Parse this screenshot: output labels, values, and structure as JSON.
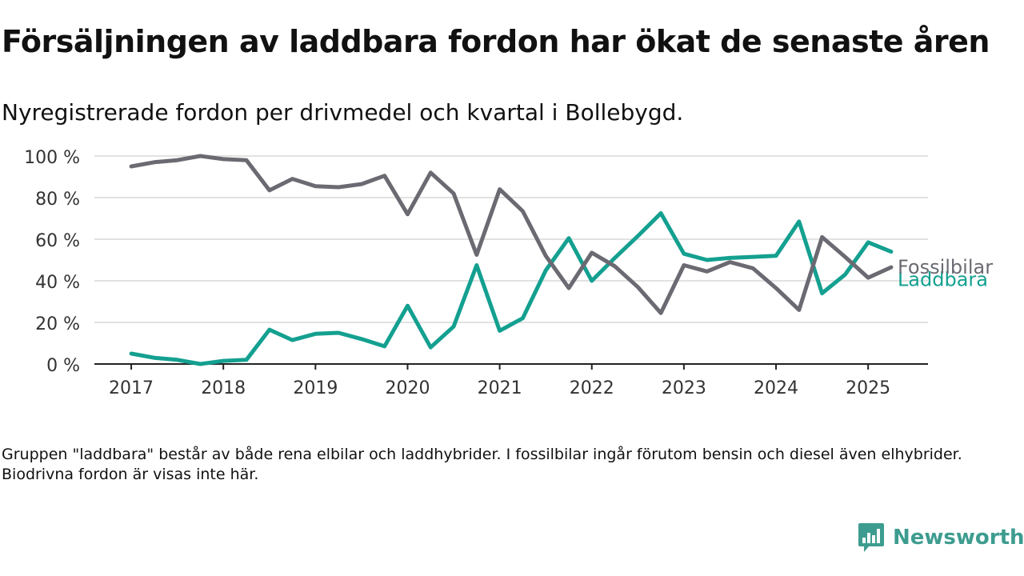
{
  "title": "Försäljningen av laddbara fordon har ökat de senaste åren",
  "subtitle": "Nyregistrerade fordon per drivmedel och kvartal i Bollebygd.",
  "footnote": "Gruppen \"laddbara\" består av både rena elbilar och laddhybrider. I fossilbilar ingår förutom bensin och diesel även elhybrider. Biodrivna fordon är visas inte här.",
  "brand": {
    "name": "Newsworthy",
    "icon": "newsworthy-logo-icon",
    "color": "#3d9c8f"
  },
  "chart_data": {
    "type": "line",
    "x": [
      2017.0,
      2017.25,
      2017.5,
      2017.75,
      2018.0,
      2018.25,
      2018.5,
      2018.75,
      2019.0,
      2019.25,
      2019.5,
      2019.75,
      2020.0,
      2020.25,
      2020.5,
      2020.75,
      2021.0,
      2021.25,
      2021.5,
      2021.75,
      2022.0,
      2022.25,
      2022.5,
      2022.75,
      2023.0,
      2023.25,
      2023.5,
      2023.75,
      2024.0,
      2024.25,
      2024.5,
      2024.75,
      2025.0,
      2025.25
    ],
    "xticks": [
      {
        "value": 2017,
        "label": "2017"
      },
      {
        "value": 2018,
        "label": "2018"
      },
      {
        "value": 2019,
        "label": "2019"
      },
      {
        "value": 2020,
        "label": "2020"
      },
      {
        "value": 2021,
        "label": "2021"
      },
      {
        "value": 2022,
        "label": "2022"
      },
      {
        "value": 2023,
        "label": "2023"
      },
      {
        "value": 2024,
        "label": "2024"
      },
      {
        "value": 2025,
        "label": "2025"
      }
    ],
    "yticks": [
      {
        "value": 0,
        "label": "0 %"
      },
      {
        "value": 20,
        "label": "20 %"
      },
      {
        "value": 40,
        "label": "40 %"
      },
      {
        "value": 60,
        "label": "60 %"
      },
      {
        "value": 80,
        "label": "80 %"
      },
      {
        "value": 100,
        "label": "100 %"
      }
    ],
    "xlim": [
      2016.6,
      2025.65
    ],
    "ylim": [
      0,
      100
    ],
    "grid": true,
    "xlabel": "",
    "ylabel": "",
    "series": [
      {
        "name": "Fossilbilar",
        "color": "#6b6a72",
        "values": [
          95,
          97,
          98,
          100,
          98.5,
          98,
          83.5,
          89,
          85.5,
          85,
          86.5,
          90.5,
          72,
          92,
          82,
          52.5,
          84,
          73.5,
          52,
          36.5,
          53.5,
          47,
          37,
          24.5,
          47.5,
          44.5,
          49,
          46,
          36.5,
          26,
          61,
          51.5,
          41.5,
          46.5
        ]
      },
      {
        "name": "Laddbara",
        "color": "#14a090",
        "values": [
          5,
          3,
          2,
          0,
          1.5,
          2,
          16.5,
          11.5,
          14.5,
          15,
          12,
          8.5,
          28,
          8,
          18,
          47.5,
          16,
          22,
          45,
          60.5,
          40,
          51,
          61.5,
          72.5,
          53,
          50,
          51,
          51.5,
          52,
          68.5,
          34,
          43,
          58.5,
          54
        ]
      }
    ]
  }
}
